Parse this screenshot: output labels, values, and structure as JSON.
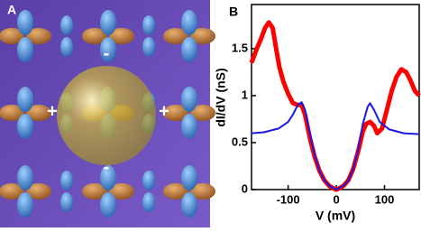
{
  "panel_a": {
    "label": "A",
    "plus_left": "+",
    "plus_right": "+",
    "minus_top": "-",
    "minus_bottom": "-"
  },
  "chart_data": {
    "type": "line",
    "label": "B",
    "xlabel": "V (mV)",
    "ylabel": "dI/dV (nS)",
    "xlim": [
      -176,
      172
    ],
    "ylim": [
      0,
      1.97
    ],
    "xticks": [
      -100,
      0,
      100
    ],
    "yticks": [
      0,
      0.5,
      1,
      1.5
    ],
    "series": [
      {
        "color": "#ff0000",
        "width": 5,
        "x": [
          -176,
          -165,
          -155,
          -148,
          -140,
          -132,
          -125,
          -118,
          -110,
          -100,
          -90,
          -80,
          -72,
          -65,
          -55,
          -45,
          -35,
          -25,
          -15,
          -5,
          0,
          5,
          15,
          25,
          35,
          45,
          55,
          62,
          70,
          78,
          85,
          95,
          105,
          115,
          125,
          135,
          145,
          155,
          163,
          172
        ],
        "values": [
          1.35,
          1.5,
          1.62,
          1.72,
          1.78,
          1.72,
          1.5,
          1.3,
          1.15,
          1.02,
          0.92,
          0.9,
          0.9,
          0.8,
          0.55,
          0.35,
          0.2,
          0.1,
          0.04,
          0.01,
          0,
          0.01,
          0.04,
          0.1,
          0.22,
          0.4,
          0.62,
          0.7,
          0.72,
          0.68,
          0.6,
          0.65,
          0.85,
          1.05,
          1.2,
          1.28,
          1.25,
          1.15,
          1.05,
          1
        ]
      },
      {
        "color": "#1a1adf",
        "width": 2,
        "x": [
          -176,
          -150,
          -120,
          -100,
          -90,
          -80,
          -72,
          -65,
          -55,
          -45,
          -35,
          -25,
          -15,
          0,
          15,
          25,
          35,
          45,
          55,
          65,
          70,
          78,
          90,
          110,
          140,
          172
        ],
        "values": [
          0.6,
          0.61,
          0.65,
          0.72,
          0.8,
          0.9,
          0.93,
          0.85,
          0.6,
          0.37,
          0.2,
          0.1,
          0.04,
          0,
          0.04,
          0.1,
          0.22,
          0.42,
          0.7,
          0.88,
          0.92,
          0.85,
          0.72,
          0.64,
          0.6,
          0.59
        ]
      }
    ]
  }
}
